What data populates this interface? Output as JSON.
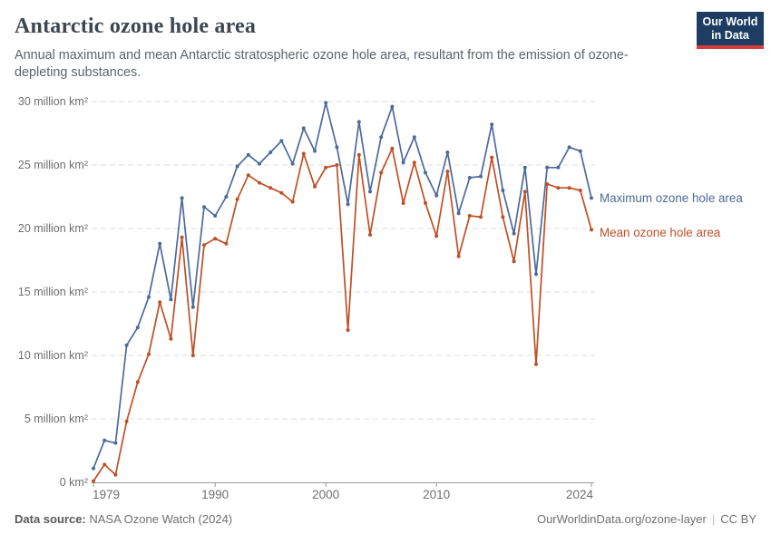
{
  "header": {
    "title": "Antarctic ozone hole area",
    "subtitle": "Annual maximum and mean Antarctic stratospheric ozone hole area, resultant from the emission of ozone-depleting substances.",
    "logo": {
      "line1": "Our World",
      "line2": "in Data"
    }
  },
  "chart_data": {
    "type": "line",
    "title": "Antarctic ozone hole area",
    "x": [
      1979,
      1980,
      1981,
      1982,
      1983,
      1984,
      1985,
      1986,
      1987,
      1988,
      1989,
      1990,
      1991,
      1992,
      1993,
      1994,
      1995,
      1996,
      1997,
      1998,
      1999,
      2000,
      2001,
      2002,
      2003,
      2004,
      2005,
      2006,
      2007,
      2008,
      2009,
      2010,
      2011,
      2012,
      2013,
      2014,
      2015,
      2016,
      2017,
      2018,
      2019,
      2020,
      2021,
      2022,
      2023,
      2024
    ],
    "series": [
      {
        "name": "Maximum ozone hole area",
        "color": "#4C6A9C",
        "values": [
          1.1,
          3.3,
          3.1,
          10.8,
          12.2,
          14.6,
          18.8,
          14.4,
          22.4,
          13.8,
          21.7,
          21.0,
          22.5,
          24.9,
          25.8,
          25.1,
          26.0,
          26.9,
          25.1,
          27.9,
          26.1,
          29.9,
          26.4,
          21.9,
          28.4,
          22.9,
          27.2,
          29.6,
          25.2,
          27.2,
          24.4,
          22.6,
          26.0,
          21.2,
          24.0,
          24.1,
          28.2,
          23.0,
          19.6,
          24.8,
          16.4,
          24.8,
          24.8,
          26.4,
          26.1,
          22.4
        ]
      },
      {
        "name": "Mean ozone hole area",
        "color": "#BF4F24",
        "values": [
          0.1,
          1.4,
          0.6,
          4.8,
          7.9,
          10.1,
          14.2,
          11.3,
          19.3,
          10.0,
          18.7,
          19.2,
          18.8,
          22.3,
          24.2,
          23.6,
          23.2,
          22.8,
          22.1,
          25.9,
          23.3,
          24.8,
          25.0,
          12.0,
          25.8,
          19.5,
          24.4,
          26.3,
          22.0,
          25.2,
          22.0,
          19.4,
          24.5,
          17.8,
          21.0,
          20.9,
          25.6,
          20.9,
          17.4,
          22.9,
          9.3,
          23.5,
          23.2,
          23.2,
          23.0,
          19.9
        ]
      }
    ],
    "ylim": [
      0,
      30
    ],
    "unit": "million km²",
    "yticks": [
      {
        "value": 30,
        "label": "30 million km²"
      },
      {
        "value": 25,
        "label": "25 million km²"
      },
      {
        "value": 20,
        "label": "20 million km²"
      },
      {
        "value": 15,
        "label": "15 million km²"
      },
      {
        "value": 10,
        "label": "10 million km²"
      },
      {
        "value": 5,
        "label": "5 million km²"
      },
      {
        "value": 0,
        "label": "0 km²"
      }
    ],
    "xticks": [
      {
        "value": 1979,
        "label": "1979"
      },
      {
        "value": 1990,
        "label": "1990"
      },
      {
        "value": 2000,
        "label": "2000"
      },
      {
        "value": 2010,
        "label": "2010"
      },
      {
        "value": 2024,
        "label": "2024"
      }
    ],
    "grid": "horizontal-dashed",
    "legend_position": "right-of-line-ends"
  },
  "footer": {
    "source_label": "Data source:",
    "source_value": "NASA Ozone Watch (2024)",
    "url": "OurWorldinData.org/ozone-layer",
    "separator": "|",
    "license": "CC BY"
  }
}
